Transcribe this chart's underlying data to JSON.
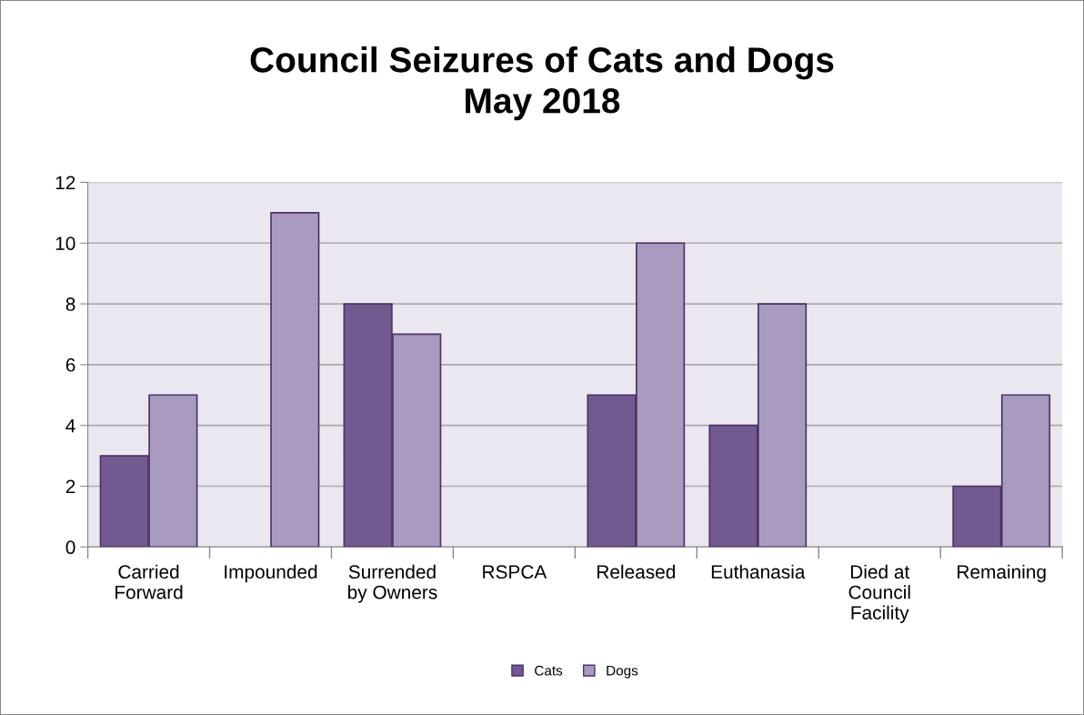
{
  "chart_data": {
    "type": "bar",
    "title": "Council Seizures of Cats and Dogs\nMay 2018",
    "categories": [
      "Carried\nForward",
      "Impounded",
      "Surrended\nby Owners",
      "RSPCA",
      "Released",
      "Euthanasia",
      "Died at\nCouncil\nFacility",
      "Remaining"
    ],
    "series": [
      {
        "name": "Cats",
        "color": "#725990",
        "values": [
          3,
          0,
          8,
          0,
          5,
          4,
          0,
          2
        ]
      },
      {
        "name": "Dogs",
        "color": "#a99bc0",
        "values": [
          5,
          11,
          7,
          0,
          10,
          8,
          0,
          5
        ]
      }
    ],
    "ylim": [
      0,
      12
    ],
    "yticks": [
      0,
      2,
      4,
      6,
      8,
      10,
      12
    ],
    "grid": "y",
    "legend": "bottom"
  }
}
